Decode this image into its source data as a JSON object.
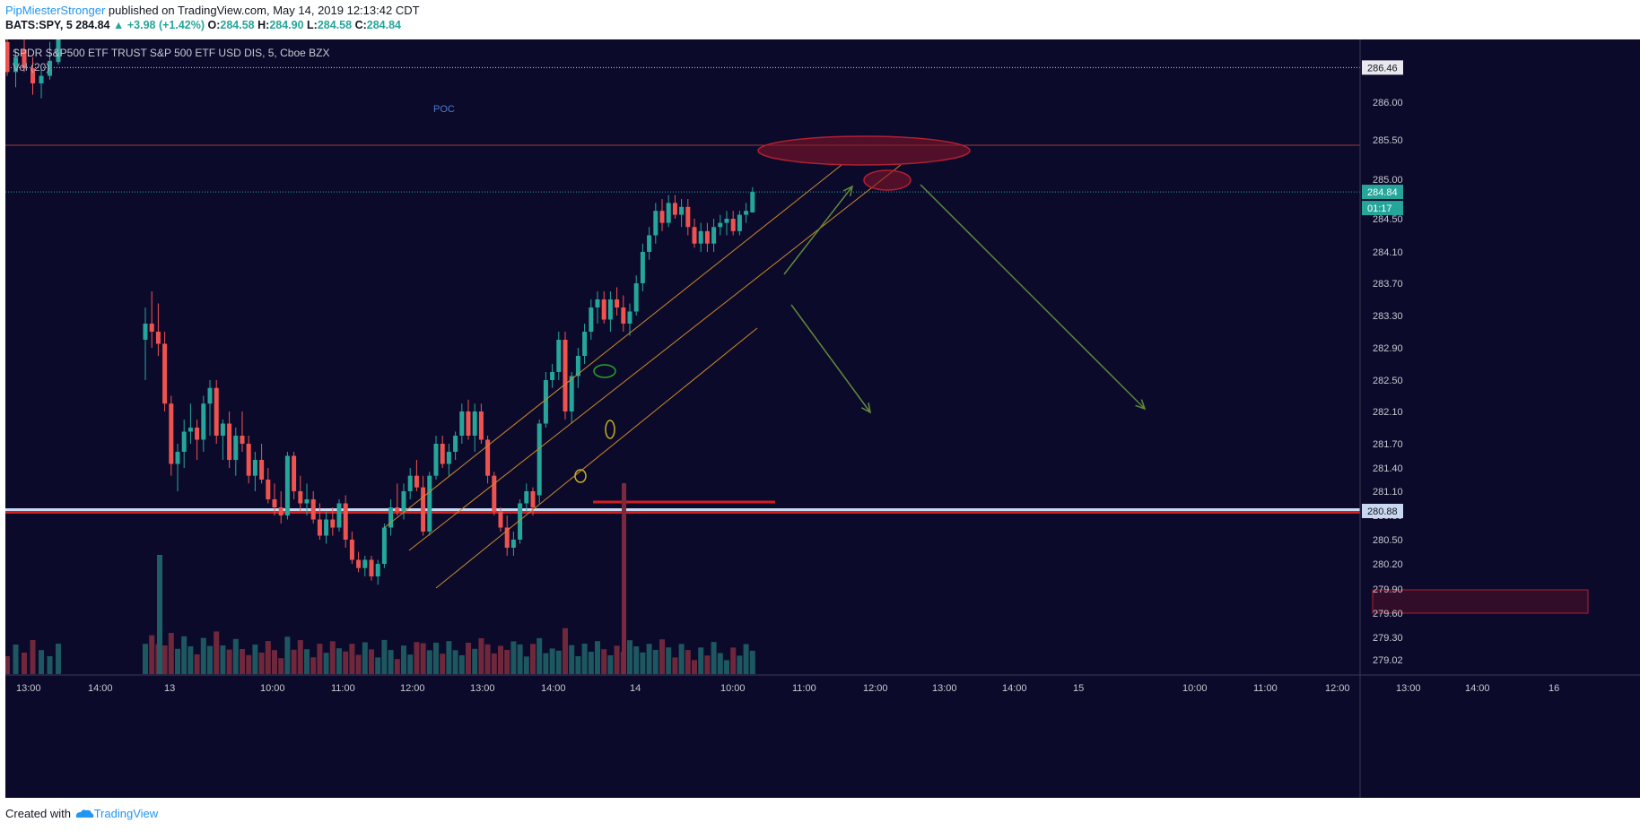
{
  "header": {
    "author": "PipMiesterStronger",
    "published_text": " published on TradingView.com, May 14, 2019 12:13:42 CDT",
    "symbol": "BATS:SPY, 5",
    "last": "284.84",
    "change": "▲ +3.98 (+1.42%)",
    "o_label": "O:",
    "o": "284.58",
    "h_label": "H:",
    "h": "284.90",
    "l_label": "L:",
    "l": "284.58",
    "c_label": "C:",
    "c": "284.84"
  },
  "chart_data": {
    "type": "candlestick",
    "title": "SPDR S&P500 ETF TRUST S&P 500 ETF USD DIS, 5, Cboe BZX",
    "indicator": "Vol (20)",
    "y_ticks": [
      286.0,
      285.5,
      285.0,
      284.5,
      284.1,
      283.7,
      283.3,
      282.9,
      282.5,
      282.1,
      281.7,
      281.4,
      281.1,
      280.8,
      280.5,
      280.2,
      279.9,
      279.6,
      279.3,
      279.02
    ],
    "y_tick_labels": [
      "286.00",
      "285.50",
      "285.00",
      "284.50",
      "284.10",
      "283.70",
      "283.30",
      "282.90",
      "282.50",
      "282.10",
      "281.70",
      "281.40",
      "281.10",
      "280.80",
      "280.50",
      "280.20",
      "279.90",
      "279.60",
      "279.30",
      "279.02"
    ],
    "x_ticks": [
      "13:00",
      "14:00",
      "13",
      "10:00",
      "11:00",
      "12:00",
      "13:00",
      "14:00",
      "14",
      "10:00",
      "11:00",
      "12:00",
      "13:00",
      "14:00",
      "15",
      "10:00",
      "11:00",
      "12:00",
      "13:00",
      "14:00",
      "16"
    ],
    "price_labels": [
      {
        "value": 286.46,
        "text": "286.46",
        "kind": "dotted"
      },
      {
        "value": 284.84,
        "text": "284.84",
        "kind": "last"
      },
      {
        "text": "01:17",
        "kind": "countdown"
      },
      {
        "value": 280.88,
        "text": "280.88",
        "kind": "level"
      }
    ],
    "annotations": [
      "POC"
    ],
    "candles": [
      {
        "o": 286.8,
        "h": 286.9,
        "l": 286.35,
        "c": 286.4
      },
      {
        "o": 286.4,
        "h": 286.7,
        "l": 286.2,
        "c": 286.6
      },
      {
        "o": 286.7,
        "h": 286.9,
        "l": 286.4,
        "c": 286.45
      },
      {
        "o": 286.45,
        "h": 286.6,
        "l": 286.1,
        "c": 286.25
      },
      {
        "o": 286.25,
        "h": 286.45,
        "l": 286.05,
        "c": 286.35
      },
      {
        "o": 286.35,
        "h": 286.8,
        "l": 286.3,
        "c": 286.55
      },
      {
        "o": 286.55,
        "h": 287.0,
        "l": 286.5,
        "c": 286.85
      },
      {
        "o": 283.0,
        "h": 283.4,
        "l": 282.5,
        "c": 283.2
      },
      {
        "o": 283.2,
        "h": 283.6,
        "l": 282.9,
        "c": 283.1
      },
      {
        "o": 283.1,
        "h": 283.45,
        "l": 282.8,
        "c": 282.95
      },
      {
        "o": 282.95,
        "h": 283.1,
        "l": 282.1,
        "c": 282.2
      },
      {
        "o": 282.2,
        "h": 282.3,
        "l": 281.3,
        "c": 281.45
      },
      {
        "o": 281.45,
        "h": 281.7,
        "l": 281.1,
        "c": 281.6
      },
      {
        "o": 281.6,
        "h": 282.0,
        "l": 281.4,
        "c": 281.85
      },
      {
        "o": 281.85,
        "h": 282.2,
        "l": 281.7,
        "c": 281.9
      },
      {
        "o": 281.9,
        "h": 282.0,
        "l": 281.5,
        "c": 281.75
      },
      {
        "o": 281.75,
        "h": 282.3,
        "l": 281.6,
        "c": 282.2
      },
      {
        "o": 282.2,
        "h": 282.5,
        "l": 281.8,
        "c": 282.4
      },
      {
        "o": 282.4,
        "h": 282.5,
        "l": 281.7,
        "c": 281.8
      },
      {
        "o": 281.8,
        "h": 282.0,
        "l": 281.5,
        "c": 281.95
      },
      {
        "o": 281.95,
        "h": 282.1,
        "l": 281.4,
        "c": 281.5
      },
      {
        "o": 281.5,
        "h": 281.9,
        "l": 281.3,
        "c": 281.8
      },
      {
        "o": 281.8,
        "h": 282.1,
        "l": 281.6,
        "c": 281.7
      },
      {
        "o": 281.7,
        "h": 281.8,
        "l": 281.2,
        "c": 281.3
      },
      {
        "o": 281.3,
        "h": 281.6,
        "l": 281.1,
        "c": 281.5
      },
      {
        "o": 281.5,
        "h": 281.7,
        "l": 281.2,
        "c": 281.25
      },
      {
        "o": 281.25,
        "h": 281.4,
        "l": 280.95,
        "c": 281.0
      },
      {
        "o": 281.0,
        "h": 281.2,
        "l": 280.8,
        "c": 280.9
      },
      {
        "o": 280.9,
        "h": 281.1,
        "l": 280.7,
        "c": 280.8
      },
      {
        "o": 280.8,
        "h": 281.6,
        "l": 280.75,
        "c": 281.55
      },
      {
        "o": 281.55,
        "h": 281.6,
        "l": 281.0,
        "c": 281.1
      },
      {
        "o": 281.1,
        "h": 281.3,
        "l": 280.85,
        "c": 280.95
      },
      {
        "o": 280.95,
        "h": 281.2,
        "l": 280.8,
        "c": 281.0
      },
      {
        "o": 281.0,
        "h": 281.1,
        "l": 280.7,
        "c": 280.75
      },
      {
        "o": 280.75,
        "h": 280.95,
        "l": 280.5,
        "c": 280.55
      },
      {
        "o": 280.55,
        "h": 280.85,
        "l": 280.45,
        "c": 280.75
      },
      {
        "o": 280.75,
        "h": 280.9,
        "l": 280.55,
        "c": 280.65
      },
      {
        "o": 280.65,
        "h": 281.0,
        "l": 280.6,
        "c": 280.95
      },
      {
        "o": 280.95,
        "h": 281.05,
        "l": 280.4,
        "c": 280.5
      },
      {
        "o": 280.5,
        "h": 280.6,
        "l": 280.2,
        "c": 280.25
      },
      {
        "o": 280.25,
        "h": 280.35,
        "l": 280.1,
        "c": 280.15
      },
      {
        "o": 280.15,
        "h": 280.3,
        "l": 280.05,
        "c": 280.25
      },
      {
        "o": 280.25,
        "h": 280.3,
        "l": 280.0,
        "c": 280.05
      },
      {
        "o": 280.05,
        "h": 280.25,
        "l": 279.95,
        "c": 280.2
      },
      {
        "o": 280.2,
        "h": 280.7,
        "l": 280.15,
        "c": 280.65
      },
      {
        "o": 280.65,
        "h": 281.0,
        "l": 280.55,
        "c": 280.9
      },
      {
        "o": 280.9,
        "h": 281.2,
        "l": 280.8,
        "c": 280.85
      },
      {
        "o": 280.85,
        "h": 281.2,
        "l": 280.75,
        "c": 281.1
      },
      {
        "o": 281.1,
        "h": 281.4,
        "l": 281.0,
        "c": 281.3
      },
      {
        "o": 281.3,
        "h": 281.5,
        "l": 281.1,
        "c": 281.15
      },
      {
        "o": 281.15,
        "h": 281.3,
        "l": 280.55,
        "c": 280.6
      },
      {
        "o": 280.6,
        "h": 281.35,
        "l": 280.55,
        "c": 281.3
      },
      {
        "o": 281.3,
        "h": 281.8,
        "l": 281.25,
        "c": 281.7
      },
      {
        "o": 281.7,
        "h": 281.8,
        "l": 281.4,
        "c": 281.45
      },
      {
        "o": 281.45,
        "h": 281.7,
        "l": 281.3,
        "c": 281.6
      },
      {
        "o": 281.6,
        "h": 281.85,
        "l": 281.5,
        "c": 281.8
      },
      {
        "o": 281.8,
        "h": 282.2,
        "l": 281.7,
        "c": 282.1
      },
      {
        "o": 282.1,
        "h": 282.25,
        "l": 281.75,
        "c": 281.8
      },
      {
        "o": 281.8,
        "h": 282.2,
        "l": 281.6,
        "c": 282.1
      },
      {
        "o": 282.1,
        "h": 282.2,
        "l": 281.7,
        "c": 281.75
      },
      {
        "o": 281.75,
        "h": 281.8,
        "l": 281.2,
        "c": 281.3
      },
      {
        "o": 281.3,
        "h": 281.35,
        "l": 280.8,
        "c": 280.85
      },
      {
        "o": 280.85,
        "h": 280.9,
        "l": 280.6,
        "c": 280.65
      },
      {
        "o": 280.65,
        "h": 280.8,
        "l": 280.3,
        "c": 280.4
      },
      {
        "o": 280.4,
        "h": 280.6,
        "l": 280.3,
        "c": 280.5
      },
      {
        "o": 280.5,
        "h": 281.0,
        "l": 280.45,
        "c": 280.95
      },
      {
        "o": 280.95,
        "h": 281.2,
        "l": 280.85,
        "c": 281.1
      },
      {
        "o": 281.1,
        "h": 281.15,
        "l": 280.8,
        "c": 280.9
      },
      {
        "o": 281.05,
        "h": 282.0,
        "l": 280.95,
        "c": 281.95
      },
      {
        "o": 281.95,
        "h": 282.6,
        "l": 281.9,
        "c": 282.5
      },
      {
        "o": 282.5,
        "h": 282.7,
        "l": 282.4,
        "c": 282.6
      },
      {
        "o": 282.6,
        "h": 283.1,
        "l": 282.5,
        "c": 283.0
      },
      {
        "o": 283.0,
        "h": 283.1,
        "l": 282.0,
        "c": 282.1
      },
      {
        "o": 282.1,
        "h": 282.6,
        "l": 281.95,
        "c": 282.55
      },
      {
        "o": 282.55,
        "h": 282.9,
        "l": 282.4,
        "c": 282.8
      },
      {
        "o": 282.8,
        "h": 283.2,
        "l": 282.7,
        "c": 283.1
      },
      {
        "o": 283.1,
        "h": 283.5,
        "l": 283.0,
        "c": 283.4
      },
      {
        "o": 283.4,
        "h": 283.6,
        "l": 283.2,
        "c": 283.5
      },
      {
        "o": 283.5,
        "h": 283.6,
        "l": 283.2,
        "c": 283.25
      },
      {
        "o": 283.25,
        "h": 283.6,
        "l": 283.1,
        "c": 283.5
      },
      {
        "o": 283.5,
        "h": 283.65,
        "l": 283.3,
        "c": 283.4
      },
      {
        "o": 283.4,
        "h": 283.55,
        "l": 283.1,
        "c": 283.2
      },
      {
        "o": 283.2,
        "h": 283.45,
        "l": 283.05,
        "c": 283.35
      },
      {
        "o": 283.35,
        "h": 283.8,
        "l": 283.3,
        "c": 283.7
      },
      {
        "o": 283.7,
        "h": 284.2,
        "l": 283.6,
        "c": 284.1
      },
      {
        "o": 284.1,
        "h": 284.4,
        "l": 284.0,
        "c": 284.3
      },
      {
        "o": 284.3,
        "h": 284.7,
        "l": 284.2,
        "c": 284.6
      },
      {
        "o": 284.6,
        "h": 284.75,
        "l": 284.35,
        "c": 284.45
      },
      {
        "o": 284.45,
        "h": 284.8,
        "l": 284.4,
        "c": 284.7
      },
      {
        "o": 284.7,
        "h": 284.8,
        "l": 284.5,
        "c": 284.55
      },
      {
        "o": 284.55,
        "h": 284.75,
        "l": 284.4,
        "c": 284.65
      },
      {
        "o": 284.65,
        "h": 284.75,
        "l": 284.3,
        "c": 284.4
      },
      {
        "o": 284.4,
        "h": 284.5,
        "l": 284.15,
        "c": 284.2
      },
      {
        "o": 284.2,
        "h": 284.45,
        "l": 284.1,
        "c": 284.35
      },
      {
        "o": 284.35,
        "h": 284.45,
        "l": 284.1,
        "c": 284.2
      },
      {
        "o": 284.2,
        "h": 284.5,
        "l": 284.1,
        "c": 284.4
      },
      {
        "o": 284.4,
        "h": 284.55,
        "l": 284.3,
        "c": 284.45
      },
      {
        "o": 284.45,
        "h": 284.6,
        "l": 284.3,
        "c": 284.5
      },
      {
        "o": 284.5,
        "h": 284.6,
        "l": 284.3,
        "c": 284.35
      },
      {
        "o": 284.35,
        "h": 284.6,
        "l": 284.3,
        "c": 284.55
      },
      {
        "o": 284.55,
        "h": 284.7,
        "l": 284.45,
        "c": 284.6
      },
      {
        "o": 284.58,
        "h": 284.9,
        "l": 284.58,
        "c": 284.84
      }
    ]
  },
  "footer": {
    "created_with": "Created with ",
    "brand": "TradingView"
  }
}
